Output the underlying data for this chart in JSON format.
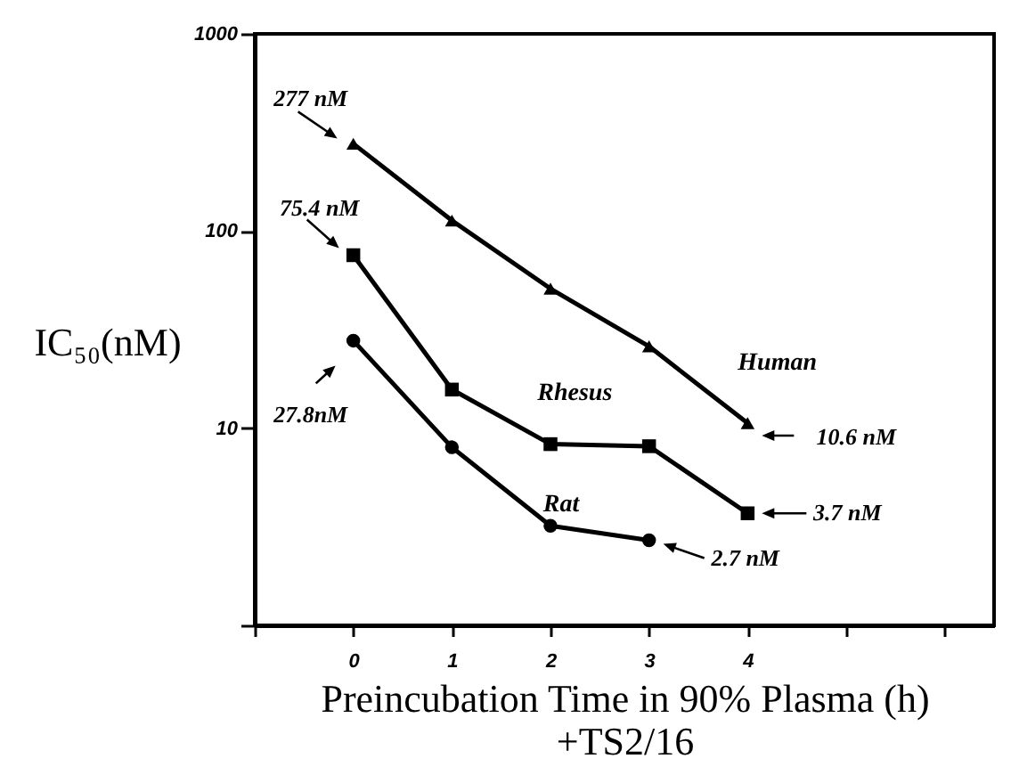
{
  "chart_data": {
    "type": "line",
    "log": true,
    "xlabel": "Preincubation Time in 90% Plasma (h)\n+TS2/16",
    "ylabel": "IC₅₀(nM)",
    "xlim": [
      -1,
      6.5
    ],
    "xticks": [
      {
        "value": -1,
        "label": null
      },
      0,
      1,
      2,
      3,
      4,
      {
        "value": 5,
        "label": null
      },
      {
        "value": 6,
        "label": null
      }
    ],
    "ylim": [
      1,
      1000
    ],
    "yticks": [
      {
        "value": 1,
        "label": null
      },
      10,
      100,
      1000
    ],
    "series": [
      {
        "name": "Human",
        "color": "#000000",
        "marker": "triangle",
        "x": [
          0,
          1,
          2,
          3,
          4
        ],
        "values": [
          277,
          113,
          51,
          26,
          10.6
        ]
      },
      {
        "name": "Rhesus",
        "color": "#000000",
        "marker": "square",
        "x": [
          0,
          1,
          2,
          3,
          4
        ],
        "values": [
          75.4,
          15.7,
          8.3,
          8.1,
          3.7
        ]
      },
      {
        "name": "Rat",
        "color": "#000000",
        "marker": "circle",
        "x": [
          0,
          1,
          2,
          3
        ],
        "values": [
          27.8,
          8.0,
          3.2,
          2.7
        ]
      }
    ],
    "annotations": [
      {
        "text": "277 nM",
        "x": 0,
        "y": 277
      },
      {
        "text": "75.4 nM",
        "x": 0,
        "y": 75.4
      },
      {
        "text": "27.8nM",
        "x": 0,
        "y": 27.8
      },
      {
        "text": "10.6 nM",
        "x": 4,
        "y": 10.6
      },
      {
        "text": "3.7 nM",
        "x": 4,
        "y": 3.7
      },
      {
        "text": "2.7 nM",
        "x": 3,
        "y": 2.7
      }
    ]
  }
}
